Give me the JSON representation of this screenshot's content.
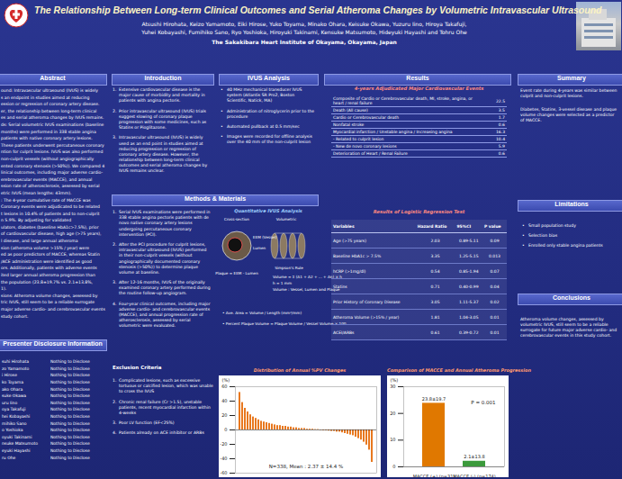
{
  "header": {
    "title": "The Relationship Between Long-term Clinical Outcomes and Serial Atheroma Changes by Volumetric Intravascular Ultrasound",
    "authors": [
      "Atsushi Hirohata, Keizo Yamamoto, Eiki Hirose, Yuko Toyama, Minako Ohara, Keisuke Okawa, Yuzuru Iino, Hiroya Takafuji,",
      "Yuhei Kobayashi, Fumihiko Sano, Ryo Yoshioka, Hiroyuki Takinami, Kensuke Matsumoto, Hideyuki Hayashi and Tohru Ohe"
    ],
    "institution": "The Sakakibara Heart Institute of Okayama, Okayama, Japan"
  },
  "abstract": {
    "title": "Abstract",
    "lines": [
      "ound: Intravascular ultrasound (IVUS) is widely",
      "s an endpoint in studies aimed at reducing",
      "ession or regression of coronary artery disease.",
      "er, the relationship between long-term clinical",
      "es and serial atheroma changes by IVUS remains.",
      "ds: Serial volumetric IVUS examinations (baseline",
      "months) were performed in 338 stable angina",
      "patients with native coronary artery lesions.",
      "These patients underwent percutaneous coronary",
      "ntion for culprit lesions. IVUS was also performed",
      "non-culprit vessels (without angiographically",
      "ented coronary stenosis (>50%)). We compared 4",
      "linical outcomes, including major adverse cardio-",
      "erebrovascular events (MACCE), and annual",
      "ssion rate of atherosclerosis, assessed by serial",
      "etric IVUS (mean lengths: 43mm).",
      ": The 4-year cumulative rate of MACCE was",
      "Coronary events were adjudicated to be related",
      "t lesions in 10.4% of patients and to non-culprit",
      "n 5.9%. By adjusting for validated",
      "ulators, diabetes (baseline HbA1c>7.5%), prior",
      "of cardiovascular disease, high age (>75 years),",
      "l disease, and large annual atheroma",
      "sion (atheroma volume >15% / year) were",
      "ed as poor predictors of MACCE, whereas Statin",
      "/ACE administration were identified as good",
      "ors. Additionally, patients with adverse events",
      "ited larger annual atheroma progression than",
      "the population (23.8±19.7% vs. 2.1±13.8%,",
      "1).",
      "sions: Atheroma volume changes, assessed by",
      "tric IVUS, still seem to be a reliable surrogate",
      "major adverse cardio- and cerebrovascular events",
      "study cohort."
    ]
  },
  "disclosure": {
    "title": "Presenter Disclosure Information",
    "rows": [
      [
        "suhi Hirohata",
        "Nothing to Disclose"
      ],
      [
        "zo Yamamoto",
        "Nothing to Disclose"
      ],
      [
        "i Hirose",
        "Nothing to Disclose"
      ],
      [
        "ko Toyama",
        "Nothing to Disclose"
      ],
      [
        "ako Ohara",
        "Nothing to Disclose"
      ],
      [
        "suke Okawa",
        "Nothing to Disclose"
      ],
      [
        "uru Iino",
        "Nothing to Disclose"
      ],
      [
        "oya Takafuji",
        "Nothing to Disclose"
      ],
      [
        "hei Kobayashi",
        "Nothing to Disclose"
      ],
      [
        "mihiko Sano",
        "Nothing to Disclose"
      ],
      [
        "o Yoshioka",
        "Nothing to Disclose"
      ],
      [
        "oyuki Takinami",
        "Nothing to Disclose"
      ],
      [
        "nsuke Matsumoto",
        "Nothing to Disclose"
      ],
      [
        "eyuki Hayashi",
        "Nothing to Disclose"
      ],
      [
        "ru Ohe",
        "Nothing to Disclose"
      ]
    ]
  },
  "introduction": {
    "title": "Introduction",
    "items": [
      [
        "1.",
        "Extensive cardiovascular disease is the major cause of morbidity and mortality in patients with angina pectoris."
      ],
      [
        "2.",
        "Prior intravascular ultrasound (IVUS) trials suggest slowing of coronary plaque progression with some medicines, such as Statins or Pioglitazone."
      ],
      [
        "3.",
        "Intravascular ultrasound (IVUS) is widely used as an end point in studies aimed at reducing progression or regression of coronary artery disease. However, the relationship between long-term clinical outcomes and serial atheroma changes by IVUS remains unclear."
      ]
    ]
  },
  "methods": {
    "title": "Methods & Materials",
    "items": [
      [
        "1.",
        "Serial IVUS examinations were performed in 338 stable angina pectoris patients with de novo native coronary artery lesions undergoing percutaneous coronary intervention (PCI)."
      ],
      [
        "2.",
        "After the PCI procedure for culprit lesions, intravascular ultrasound (IVUS) performed in their non-culprit vessels (without angiographically documented coronary stenosis (>50%)) to determine plaque volume at baseline."
      ],
      [
        "3.",
        "After 12-16 months, IVUS of the originally examined coronary artery performed during the routine follow-up angiogram."
      ],
      [
        "4.",
        "Four-year clinical outcomes, including major adverse cardio- and cerebrovascular events (MACCE), and annual progression rate of atherosclerosis, assessed by serial volumetric were evaluated."
      ]
    ]
  },
  "exclusion": {
    "title": "Exclusion Criteria",
    "items": [
      [
        "1.",
        "Complicated lesions, such as excessive tortuous or calcified lesion, which was unable to cross the IVUS"
      ],
      [
        "2.",
        "Chronic renal failure (Cr >1.5), unstable patients, recent myocardial infarction within 4-weeks"
      ],
      [
        "3.",
        "Poor LV function (EF<25%)"
      ],
      [
        "4.",
        "Patients already on ACE inhibitor or ARBs"
      ]
    ]
  },
  "ivus_analysis": {
    "title": "IVUS Analysis",
    "items": [
      [
        "•",
        "40 MHz mechanical transducer IVUS system (Atlantis SR Pro2, Boston Scientific, Natick, MA)"
      ],
      [
        "•",
        "Administration of nitroglycerin prior to the procedure"
      ],
      [
        "•",
        "Automated pullback at 0.5 mm/sec"
      ],
      [
        "•",
        "Images were recorded for offline analysis over the 40 mm of the non-culprit lesion"
      ]
    ]
  },
  "quantitative": {
    "title": "Quantitative IVUS Analysis",
    "labels": [
      "Cross-section",
      "Volumetric",
      "EEM (Vessel)",
      "Lumen",
      "Plaque = EEM - Lumen",
      "Simpson's Rule",
      "Volume = Σ (A1 + A2 + ... + An) × h",
      "h = 1 mm",
      "Volume : Vessel, Lumen and Plaque",
      "• Ave. Area = Volume / Length (mm²/mm)",
      "• Percent Plaque Volume = Plaque Volume / Vessel Volume × 100"
    ]
  },
  "results": {
    "title": "Results",
    "events": {
      "title": "4-years Adjudicated Major Cardiovascular Events",
      "rows": [
        [
          "Composite of Cardio or Cerebrovascular death, MI, stroke, angina, or heart / renal failure",
          "22.5"
        ],
        [
          "Death (All cause)",
          "3.5"
        ],
        [
          "Cardio or Cerebrovascular death",
          "1.7"
        ],
        [
          "Nonfatal stroke",
          "0.6"
        ],
        [
          "Myocardial infarction / Unstable angina / Increasing angina",
          "16.3"
        ],
        [
          "- Related to culprit lesion",
          "10.4"
        ],
        [
          "- New de novo coronary lesions",
          "5.9"
        ],
        [
          "Deterioration of Heart / Renal Failure",
          "0.6"
        ]
      ]
    },
    "regression": {
      "title": "Results of Logistic Regression Test",
      "header": [
        "Variables",
        "Hazard Ratio",
        "95%CI",
        "P value"
      ],
      "rows": [
        [
          "Age (>75 years)",
          "2.03",
          "0.89-5.11",
          "0.09"
        ],
        [
          "Baseline HbA1c > 7.5%",
          "3.35",
          "1.25-5.15",
          "0.013"
        ],
        [
          "hCRP (>1mg/dl)",
          "0.54",
          "0.85-1.94",
          "0.07"
        ],
        [
          "Statins",
          "0.71",
          "0.40-0.99",
          "0.04"
        ],
        [
          "Prior History of Coronary Disease",
          "3.05",
          "1.11-5.37",
          "0.02"
        ],
        [
          "Atheroma Volume (>15% / year)",
          "1.81",
          "1.04-3.05",
          "0.01"
        ],
        [
          "ACEI/ARBs",
          "0.61",
          "0.39-0.72",
          "0.01"
        ]
      ]
    }
  },
  "summary": {
    "title": "Summary",
    "items": [
      "Event rate during 4-years was similar between culprit and non-culprit lesions.",
      "Diabetes, Statins, 3-vessel disease and plaque volume changes were selected as a predictor of MACCE."
    ]
  },
  "limitations": {
    "title": "Limitations",
    "items": [
      [
        "•",
        "Small population study"
      ],
      [
        "•",
        "Selection bias"
      ],
      [
        "•",
        "Enrolled only stable angina patients"
      ]
    ]
  },
  "conclusions": {
    "title": "Conclusions",
    "text": "Atheroma volume changes, assessed by volumetric IVUS, still seem to be a reliable surrogate for future major adverse cardio- and cerebrovascular events in this study cohort."
  },
  "chart_data": [
    {
      "type": "bar",
      "title": "Distribution of Annual %PV Changes",
      "y_label": "(%)",
      "annotation": "N=338, Mean : 2.37 ± 14.4 %",
      "categories": [
        null,
        null,
        null,
        null,
        null,
        null,
        null,
        null,
        null,
        null,
        null,
        null,
        null,
        null,
        null,
        null,
        null,
        null,
        null,
        null,
        null,
        null,
        null,
        null,
        null,
        null,
        null,
        null,
        null,
        null,
        null,
        null,
        null,
        null,
        null,
        null,
        null,
        null,
        null,
        null,
        null,
        null,
        null,
        null,
        null,
        null,
        null,
        null,
        null,
        null
      ],
      "values": [
        52,
        38,
        30,
        25,
        21,
        18,
        16,
        14,
        12,
        11,
        10,
        9,
        8,
        7,
        6,
        6,
        5,
        5,
        4,
        4,
        3,
        3,
        2,
        2,
        2,
        1,
        1,
        1,
        0.5,
        0.5,
        -0.5,
        -1,
        -1,
        -1.5,
        -2,
        -2,
        -3,
        -3,
        -4,
        -5,
        -6,
        -7,
        -8,
        -10,
        -12,
        -14,
        -17,
        -21,
        -28,
        -45
      ],
      "color": "#e8781e",
      "ylim": [
        -60,
        60
      ],
      "yticks": [
        -60,
        -40,
        -20,
        0,
        20,
        40,
        60
      ],
      "grid": false,
      "tick_labels": "y"
    },
    {
      "type": "bar",
      "title": "Comparison of MACCE and Annual Atheroma Progression",
      "y_label": "(%)",
      "annotation": "P = 0.001",
      "categories": [
        "MACCE (+) (n=31)",
        "MACCE (-) (n=174)"
      ],
      "values": [
        23.8,
        2.1
      ],
      "value_labels": [
        "23.8±19.7",
        "2.1±13.8"
      ],
      "colors": [
        "#e07800",
        "#3c9a3c"
      ],
      "ylim": [
        0,
        30
      ],
      "yticks": [
        0,
        10,
        20,
        30
      ],
      "grid": false,
      "data_labels": true
    }
  ]
}
